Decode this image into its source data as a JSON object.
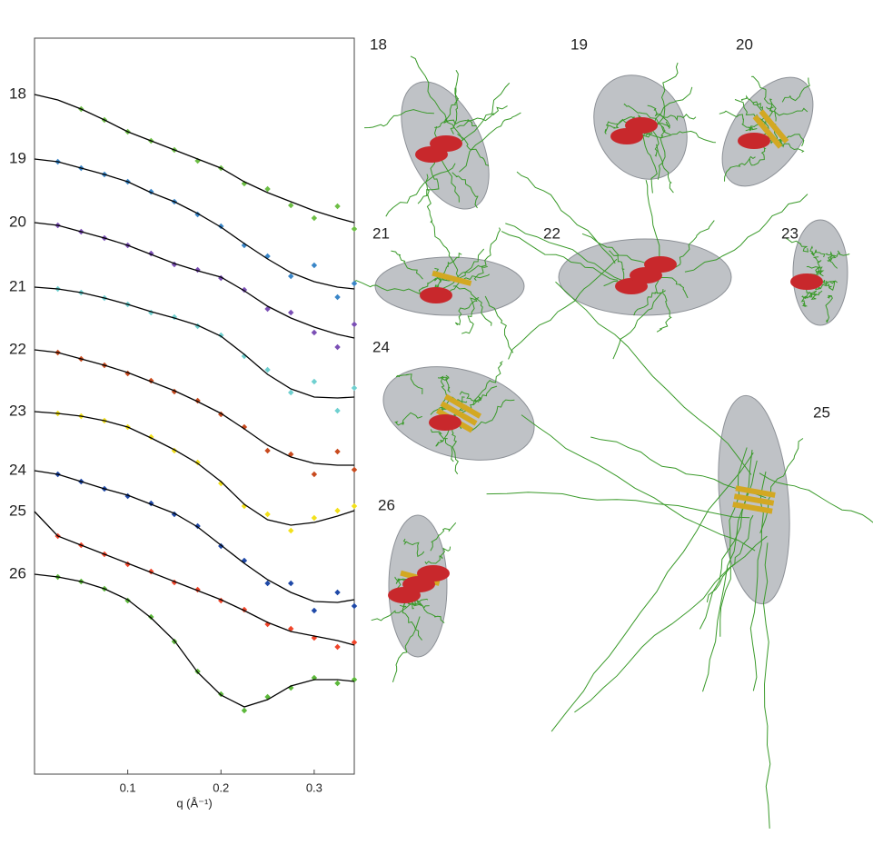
{
  "chart_data": {
    "type": "line",
    "xlabel": "q (Å⁻¹)",
    "x": [
      0,
      0.025,
      0.05,
      0.075,
      0.1,
      0.125,
      0.15,
      0.175,
      0.2,
      0.225,
      0.25,
      0.275,
      0.3,
      0.325,
      0.343
    ],
    "xlim": [
      0,
      0.343
    ],
    "xticks": [
      0.1,
      0.2,
      0.3
    ],
    "ylim": [
      0,
      810
    ],
    "fit_color": "#000000",
    "series": [
      {
        "name": "18",
        "color": "#6dbe45",
        "values": [
          null,
          null,
          732,
          720,
          707,
          697,
          687,
          675,
          667,
          650,
          644,
          626,
          612,
          625,
          600
        ],
        "fit": [
          748,
          742,
          732,
          720,
          707,
          697,
          687,
          677,
          667,
          652,
          640,
          630,
          620,
          612,
          607
        ]
      },
      {
        "name": "19",
        "color": "#3a86c8",
        "values": [
          null,
          674,
          667,
          660,
          652,
          641,
          630,
          616,
          603,
          582,
          570,
          548,
          560,
          525,
          540
        ],
        "fit": [
          677,
          674,
          667,
          660,
          652,
          640,
          630,
          617,
          602,
          584,
          567,
          552,
          542,
          536,
          534
        ]
      },
      {
        "name": "20",
        "color": "#7b4fb5",
        "values": [
          null,
          604,
          597,
          590,
          582,
          573,
          561,
          555,
          546,
          533,
          512,
          508,
          486,
          470,
          495
        ],
        "fit": [
          607,
          604,
          597,
          590,
          582,
          572,
          562,
          554,
          547,
          532,
          515,
          502,
          492,
          484,
          480
        ]
      },
      {
        "name": "21",
        "color": "#6fd0d0",
        "values": [
          null,
          534,
          530,
          524,
          517,
          508,
          503,
          493,
          483,
          460,
          445,
          420,
          432,
          400,
          425
        ],
        "fit": [
          536,
          534,
          530,
          524,
          517,
          509,
          502,
          494,
          482,
          462,
          440,
          424,
          415,
          414,
          415
        ]
      },
      {
        "name": "22",
        "color": "#c84a1e",
        "values": [
          null,
          464,
          457,
          450,
          441,
          433,
          421,
          411,
          396,
          382,
          356,
          352,
          330,
          355,
          335
        ],
        "fit": [
          467,
          464,
          457,
          450,
          442,
          432,
          422,
          410,
          397,
          380,
          362,
          349,
          342,
          340,
          340
        ]
      },
      {
        "name": "23",
        "color": "#f3e11b",
        "values": [
          null,
          397,
          394,
          389,
          382,
          371,
          356,
          343,
          320,
          295,
          286,
          268,
          282,
          290,
          295
        ],
        "fit": [
          399,
          397,
          394,
          389,
          382,
          370,
          357,
          342,
          322,
          297,
          280,
          274,
          277,
          284,
          290
        ]
      },
      {
        "name": "24",
        "color": "#1f49a8",
        "values": [
          null,
          330,
          322,
          314,
          306,
          298,
          286,
          273,
          251,
          235,
          210,
          210,
          180,
          200,
          185
        ],
        "fit": [
          334,
          330,
          322,
          314,
          307,
          297,
          287,
          272,
          252,
          232,
          214,
          200,
          190,
          189,
          192
        ]
      },
      {
        "name": "25",
        "color": "#f0452a",
        "values": [
          null,
          262,
          252,
          242,
          231,
          223,
          211,
          203,
          191,
          181,
          165,
          160,
          150,
          140,
          145
        ],
        "fit": [
          289,
          262,
          252,
          242,
          232,
          222,
          212,
          202,
          192,
          180,
          167,
          157,
          152,
          147,
          142
        ]
      },
      {
        "name": "26",
        "color": "#5cb83a",
        "values": [
          null,
          217,
          212,
          204,
          191,
          173,
          146,
          113,
          88,
          70,
          85,
          95,
          106,
          100,
          104
        ],
        "fit": [
          220,
          217,
          212,
          204,
          192,
          172,
          147,
          112,
          87,
          74,
          82,
          97,
          104,
          104,
          102
        ]
      }
    ]
  }
}
